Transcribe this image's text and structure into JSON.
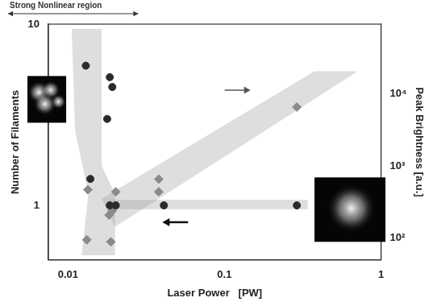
{
  "chart_data": {
    "type": "scatter",
    "xlabel": "Laser Power   [PW]",
    "ylabel": "Number of Filaments",
    "y2label": "Peak Brightness [a.u.]",
    "annotations": [
      "Strong Nonlinear region"
    ],
    "log": true,
    "grid": false,
    "xlim": [
      0.0075,
      1
    ],
    "xticks": [
      0.01,
      0.1,
      1
    ],
    "ylim": [
      0.5,
      10
    ],
    "yticks": [
      1,
      10
    ],
    "y2lim": [
      50,
      93000
    ],
    "y2ticks": [
      {
        "value": 100,
        "label": "10²"
      },
      {
        "value": 1000,
        "label": "10³"
      },
      {
        "value": 10000,
        "label": "10⁴"
      }
    ],
    "series": [
      {
        "axis": "y",
        "color": "#2b2b2b",
        "marker": "circle",
        "x": [
          0.013,
          0.0185,
          0.0192,
          0.0178,
          0.0139,
          0.0185,
          0.0202,
          0.041,
          0.29
        ],
        "values": [
          5.9,
          5.1,
          4.5,
          3.0,
          1.4,
          1,
          1,
          1,
          1
        ]
      },
      {
        "axis": "y2",
        "color": "#8a8a8a",
        "marker": "diamond",
        "x": [
          0.0134,
          0.0202,
          0.0192,
          0.0183,
          0.038,
          0.038,
          0.0132,
          0.0188,
          0.29
        ],
        "values": [
          470,
          440,
          240,
          210,
          660,
          440,
          95,
          89,
          6600
        ]
      }
    ]
  }
}
